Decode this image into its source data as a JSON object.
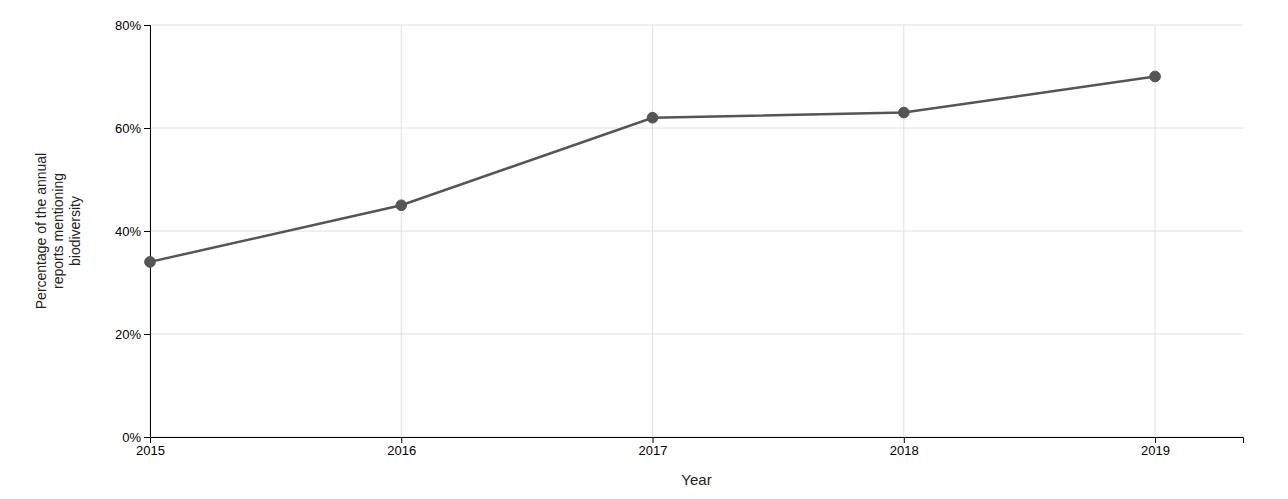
{
  "chart_data": {
    "type": "line",
    "x": [
      2015,
      2016,
      2017,
      2018,
      2019
    ],
    "values": [
      0.34,
      0.45,
      0.62,
      0.63,
      0.7
    ],
    "color": "#555555",
    "marker": "circle",
    "xlabel": "Year",
    "ylabel": "Percentage of the annual\nreports mentioning\nbiodiversity",
    "xlim": [
      2015,
      2019.35
    ],
    "xticks": [
      2015,
      2016,
      2017,
      2018,
      2019
    ],
    "ylim": [
      0,
      0.8
    ],
    "yticks": [
      {
        "value": 0.0,
        "label": "0%"
      },
      {
        "value": 0.2,
        "label": "20%"
      },
      {
        "value": 0.4,
        "label": "40%"
      },
      {
        "value": 0.6,
        "label": "60%"
      },
      {
        "value": 0.8,
        "label": "80%"
      }
    ],
    "grid": true
  }
}
